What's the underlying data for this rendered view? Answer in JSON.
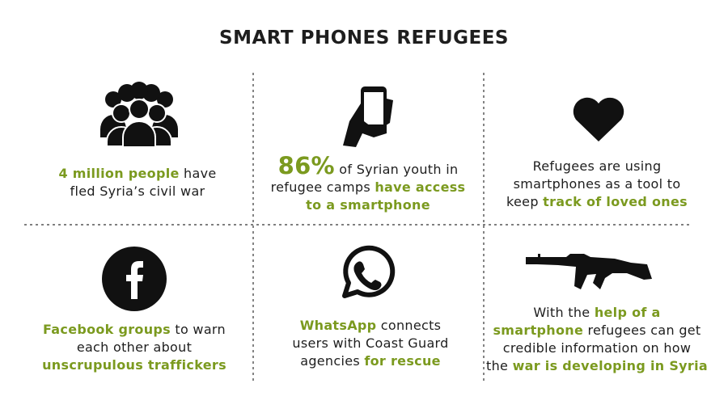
{
  "header": {
    "title": "SMART PHONES REFUGEES"
  },
  "colors": {
    "text": "#1e1e1e",
    "highlight": "#7b9a1f"
  },
  "cells": [
    {
      "lines": [
        [
          {
            "text": "4 million people",
            "style": "highlight"
          },
          {
            "text": " have",
            "style": "plain"
          }
        ],
        [
          {
            "text": "fled Syria’s civil war",
            "style": "plain"
          }
        ]
      ]
    },
    {
      "lines": [
        [
          {
            "text": "86%",
            "style": "highlight-large"
          },
          {
            "text": " of Syrian youth in",
            "style": "plain"
          }
        ],
        [
          {
            "text": "refugee camps ",
            "style": "plain"
          },
          {
            "text": "have access",
            "style": "highlight"
          }
        ],
        [
          {
            "text": "to a smartphone",
            "style": "highlight"
          }
        ]
      ]
    },
    {
      "lines": [
        [
          {
            "text": "Refugees are using",
            "style": "plain"
          }
        ],
        [
          {
            "text": "smartphones as a tool to",
            "style": "plain"
          }
        ],
        [
          {
            "text": "keep ",
            "style": "plain"
          },
          {
            "text": "track of loved ones",
            "style": "highlight"
          }
        ]
      ]
    },
    {
      "lines": [
        [
          {
            "text": "Facebook groups",
            "style": "highlight"
          },
          {
            "text": " to warn",
            "style": "plain"
          }
        ],
        [
          {
            "text": "each other about",
            "style": "plain"
          }
        ],
        [
          {
            "text": "unscrupulous traffickers",
            "style": "highlight"
          }
        ]
      ]
    },
    {
      "lines": [
        [
          {
            "text": "WhatsApp",
            "style": "highlight"
          },
          {
            "text": " connects",
            "style": "plain"
          }
        ],
        [
          {
            "text": "users with Coast Guard",
            "style": "plain"
          }
        ],
        [
          {
            "text": "agencies ",
            "style": "plain"
          },
          {
            "text": "for rescue",
            "style": "highlight"
          }
        ]
      ]
    },
    {
      "lines": [
        [
          {
            "text": "With the ",
            "style": "plain"
          },
          {
            "text": "help of a",
            "style": "highlight"
          }
        ],
        [
          {
            "text": "smartphone",
            "style": "highlight"
          },
          {
            "text": " refugees can get",
            "style": "plain"
          }
        ],
        [
          {
            "text": "credible information on how",
            "style": "plain"
          }
        ],
        [
          {
            "text": "the ",
            "style": "plain"
          },
          {
            "text": "war is developing in Syria",
            "style": "highlight"
          }
        ]
      ]
    }
  ]
}
